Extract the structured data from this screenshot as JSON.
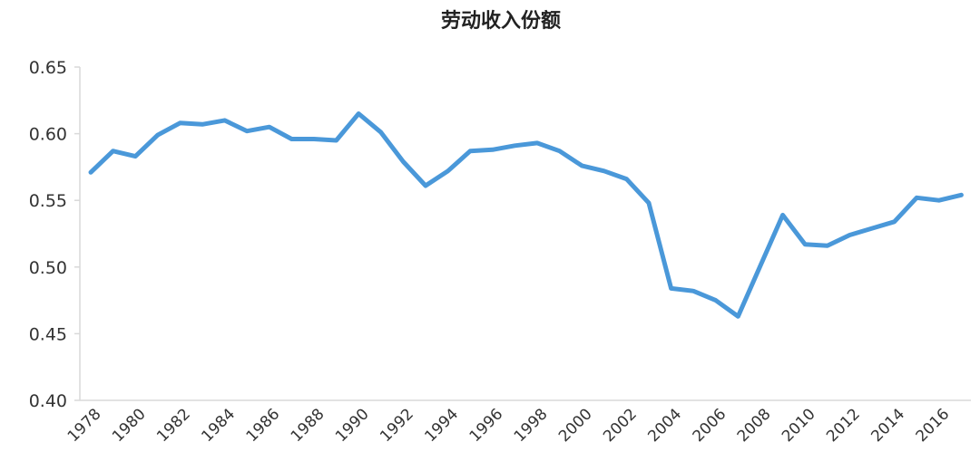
{
  "chart_data": {
    "type": "line",
    "title": "劳动收入份额",
    "xlabel": "",
    "ylabel": "",
    "ylim": [
      0.4,
      0.65
    ],
    "yticks": [
      "0.40",
      "0.45",
      "0.50",
      "0.55",
      "0.60",
      "0.65"
    ],
    "xtick_labels": [
      "1978",
      "1980",
      "1982",
      "1984",
      "1986",
      "1988",
      "1990",
      "1992",
      "1994",
      "1996",
      "1998",
      "2000",
      "2002",
      "2004",
      "2006",
      "2008",
      "2010",
      "2012",
      "2014",
      "2016"
    ],
    "grid": false,
    "line_color": "#4a98d9",
    "x": [
      1978,
      1979,
      1980,
      1981,
      1982,
      1983,
      1984,
      1985,
      1986,
      1987,
      1988,
      1989,
      1990,
      1991,
      1992,
      1993,
      1994,
      1995,
      1996,
      1997,
      1998,
      1999,
      2000,
      2001,
      2002,
      2003,
      2004,
      2005,
      2006,
      2007,
      2008,
      2009,
      2010,
      2011,
      2012,
      2013,
      2014,
      2015,
      2016,
      2017
    ],
    "values": [
      0.571,
      0.587,
      0.583,
      0.599,
      0.608,
      0.607,
      0.61,
      0.602,
      0.605,
      0.596,
      0.596,
      0.595,
      0.615,
      0.601,
      0.579,
      0.561,
      0.572,
      0.587,
      0.588,
      0.591,
      0.593,
      0.587,
      0.576,
      0.572,
      0.566,
      0.548,
      0.484,
      0.482,
      0.475,
      0.463,
      0.501,
      0.539,
      0.517,
      0.516,
      0.524,
      0.529,
      0.534,
      0.552,
      0.55,
      0.554
    ]
  }
}
